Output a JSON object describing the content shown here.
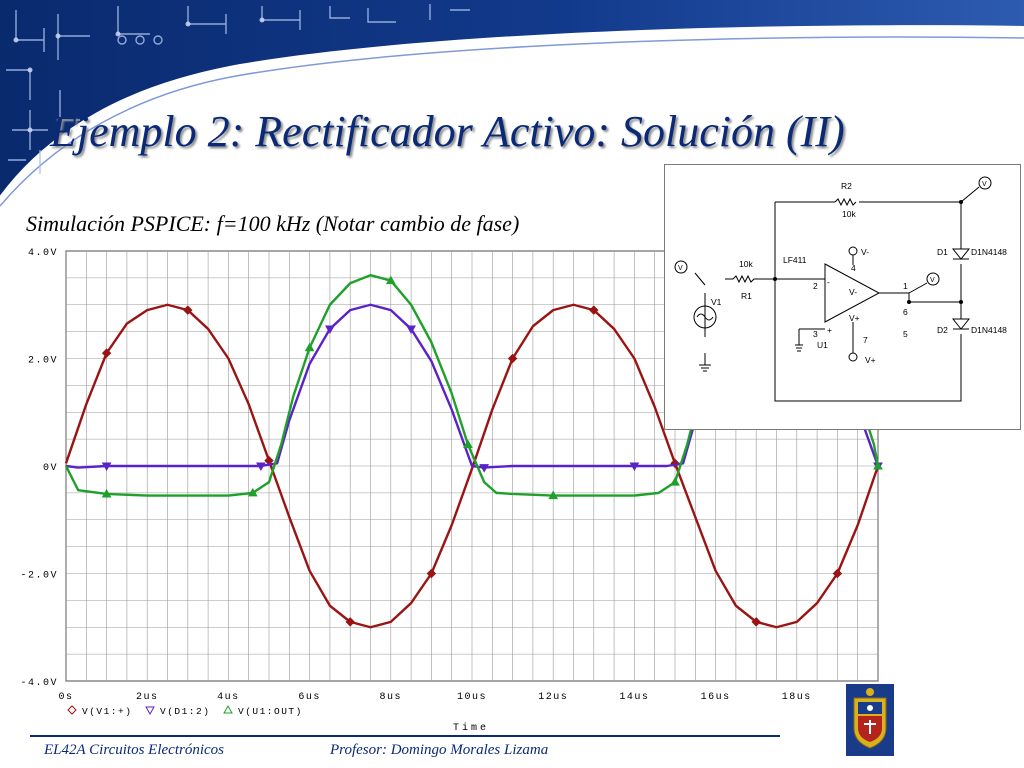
{
  "slide": {
    "title": "Ejemplo 2: Rectificador Activo: Solución (II)",
    "subtitle": "Simulación PSPICE: f=100 kHz (Notar cambio de fase)",
    "footer_left": "EL42A Circuitos Electrónicos",
    "footer_right": "Profesor: Domingo Morales Lizama",
    "accent_color": "#0a2a78"
  },
  "chart_data": {
    "type": "line",
    "title": "",
    "xlabel": "Time",
    "ylabel": "",
    "xlim": [
      0,
      20
    ],
    "ylim": [
      -4,
      4
    ],
    "x_unit": "us",
    "y_unit": "V",
    "grid": true,
    "x_ticks": [
      0,
      2,
      4,
      6,
      8,
      10,
      12,
      14,
      16,
      18,
      20
    ],
    "x_tick_labels": [
      "0s",
      "2us",
      "4us",
      "6us",
      "8us",
      "10us",
      "12us",
      "14us",
      "16us",
      "18us",
      "20us"
    ],
    "y_ticks": [
      4,
      2,
      0,
      -2,
      -4
    ],
    "y_tick_labels": [
      "4.0V",
      "2.0V",
      "0V",
      "-2.0V",
      "-4.0V"
    ],
    "legend_position": "bottom-left",
    "series": [
      {
        "name": "V(V1:+)",
        "color": "#9a1414",
        "marker": "diamond",
        "x": [
          0,
          0.5,
          1,
          1.5,
          2,
          2.5,
          3,
          3.5,
          4,
          4.5,
          5,
          5.5,
          6,
          6.5,
          7,
          7.5,
          8,
          8.5,
          9,
          9.5,
          10,
          10.5,
          11,
          11.5,
          12,
          12.5,
          13,
          13.5,
          14,
          14.5,
          15,
          15.5,
          16,
          16.5,
          17,
          17.5,
          18,
          18.5,
          19,
          19.5,
          20
        ],
        "values": [
          0.05,
          1.15,
          2.1,
          2.65,
          2.9,
          3.0,
          2.9,
          2.55,
          2.0,
          1.15,
          0.1,
          -0.95,
          -1.95,
          -2.6,
          -2.9,
          -3.0,
          -2.9,
          -2.55,
          -2.0,
          -1.1,
          -0.05,
          1.05,
          2.0,
          2.6,
          2.9,
          3.0,
          2.9,
          2.55,
          2.0,
          1.1,
          0.05,
          -0.95,
          -1.95,
          -2.6,
          -2.9,
          -3.0,
          -2.9,
          -2.55,
          -2.0,
          -1.1,
          0.0
        ]
      },
      {
        "name": "V(D1:2)",
        "color": "#5a22c8",
        "marker": "triangle-down",
        "x": [
          0,
          0.3,
          1,
          2,
          3,
          4,
          4.8,
          5.2,
          5.5,
          6,
          6.5,
          7,
          7.5,
          8,
          8.5,
          9,
          9.5,
          10,
          10.3,
          11,
          12,
          13,
          14,
          14.8,
          15.2,
          15.5,
          16,
          16.5,
          17,
          17.5,
          18,
          18.5,
          19,
          19.5,
          20
        ],
        "values": [
          0.0,
          -0.03,
          0.0,
          0.0,
          0.0,
          0.0,
          0.0,
          0.05,
          0.85,
          1.9,
          2.55,
          2.9,
          3.0,
          2.9,
          2.55,
          1.95,
          1.05,
          0.0,
          -0.03,
          0.0,
          0.0,
          0.0,
          0.0,
          0.0,
          0.05,
          0.85,
          1.9,
          2.55,
          2.9,
          3.0,
          2.9,
          2.55,
          1.95,
          1.05,
          0.0
        ]
      },
      {
        "name": "V(U1:OUT)",
        "color": "#1fa02a",
        "marker": "triangle-up",
        "x": [
          0,
          0.3,
          1,
          2,
          3,
          4,
          4.6,
          5.0,
          5.3,
          5.6,
          6,
          6.5,
          7,
          7.5,
          8,
          8.5,
          9,
          9.5,
          9.9,
          10.3,
          10.6,
          11,
          12,
          13,
          14,
          14.6,
          15.0,
          15.3,
          15.6,
          16,
          16.5,
          17,
          17.5,
          18,
          18.5,
          19,
          19.5,
          19.9,
          20
        ],
        "values": [
          0.0,
          -0.45,
          -0.52,
          -0.55,
          -0.55,
          -0.55,
          -0.5,
          -0.3,
          0.4,
          1.3,
          2.2,
          3.0,
          3.4,
          3.55,
          3.45,
          3.0,
          2.3,
          1.35,
          0.4,
          -0.3,
          -0.5,
          -0.52,
          -0.55,
          -0.55,
          -0.55,
          -0.5,
          -0.3,
          0.4,
          1.3,
          2.2,
          3.0,
          3.4,
          3.55,
          3.45,
          3.0,
          2.3,
          1.35,
          0.4,
          0.0
        ]
      }
    ]
  },
  "schematic": {
    "labels": [
      "R2",
      "10k",
      "V",
      "D1",
      "D1N4148",
      "V-",
      "LF411",
      "4",
      "10k",
      "R1",
      "V",
      "-",
      "V-",
      "1",
      "2",
      "V",
      "V1",
      "6",
      "+",
      "V+",
      "D2",
      "D1N4148",
      "3",
      "U1",
      "5",
      "7",
      "V+"
    ]
  }
}
